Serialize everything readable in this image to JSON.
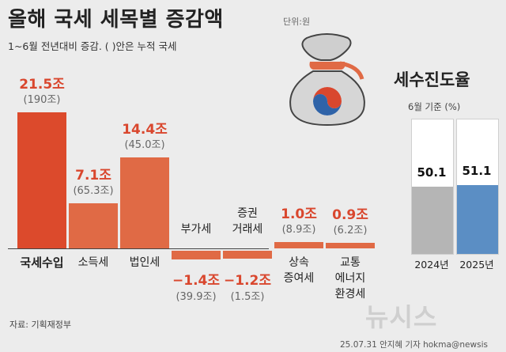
{
  "header": {
    "title": "올해 국세 세목별 증감액",
    "unit": "단위:원",
    "subtitle": "1~6월 전년대비 증감. ( )안은 누적 국세"
  },
  "footer": {
    "source": "자료: 기획재정부",
    "credit": "25.07.31 안지혜 기자 hokma@newsis",
    "watermark": "뉴시스"
  },
  "colors": {
    "main_bar": "#dc4a2c",
    "bar": "#e06a45",
    "value_text": "#d9472e",
    "bar_2024": "#b5b5b5",
    "bar_2025": "#5b8ec4"
  },
  "icon": "money-bag-icon",
  "chart_data": [
    {
      "type": "bar",
      "categories": [
        "국세수입",
        "소득세",
        "법인세",
        "부가세",
        "증권\n거래세",
        "상속\n증여세",
        "교통\n에너지\n환경세"
      ],
      "values": [
        21.5,
        7.1,
        14.4,
        -1.4,
        -1.2,
        1.0,
        0.9
      ],
      "value_labels": [
        "21.5조",
        "7.1조",
        "14.4조",
        "−1.4조",
        "−1.2조",
        "1.0조",
        "0.9조"
      ],
      "cumulative_labels": [
        "(190조)",
        "(65.3조)",
        "(45.0조)",
        "(39.9조)",
        "(1.5조)",
        "(8.9조)",
        "(6.2조)"
      ],
      "ylim": [
        -2,
        22
      ]
    },
    {
      "type": "bar",
      "title": "세수진도율",
      "subtitle": "6월 기준 (%)",
      "categories": [
        "2024년",
        "2025년"
      ],
      "values": [
        50.1,
        51.1
      ],
      "value_labels": [
        "50.1",
        "51.1"
      ],
      "ylim": [
        0,
        100
      ]
    }
  ]
}
